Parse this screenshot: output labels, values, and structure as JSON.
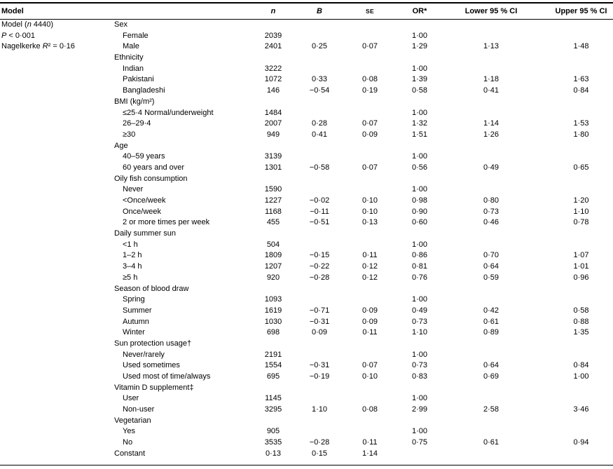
{
  "page": {
    "background": "#ffffff",
    "text_color": "#000000",
    "rule_color": "#000000"
  },
  "table": {
    "header": {
      "model": "Model",
      "n": "n",
      "b": "B",
      "se": "SE",
      "or": "OR*",
      "lower": "Lower 95 % CI",
      "upper": "Upper 95 % CI"
    },
    "model_info": [
      {
        "pre": "Model (",
        "it": "n",
        "post": " 4440)"
      },
      {
        "pre": "",
        "it": "P",
        "post": " < 0·001"
      },
      {
        "pre": "Nagelkerke ",
        "it": "R",
        "post": "² = 0·16"
      }
    ],
    "rows": [
      {
        "label": "Sex",
        "ind": 0,
        "n": "",
        "b": "",
        "se": "",
        "or": "",
        "lo": "",
        "up": ""
      },
      {
        "label": "Female",
        "ind": 1,
        "n": "2039",
        "b": "",
        "se": "",
        "or": "1·00",
        "lo": "",
        "up": ""
      },
      {
        "label": "Male",
        "ind": 1,
        "n": "2401",
        "b": "0·25",
        "se": "0·07",
        "or": "1·29",
        "lo": "1·13",
        "up": "1·48"
      },
      {
        "label": "Ethnicity",
        "ind": 0,
        "n": "",
        "b": "",
        "se": "",
        "or": "",
        "lo": "",
        "up": ""
      },
      {
        "label": "Indian",
        "ind": 1,
        "n": "3222",
        "b": "",
        "se": "",
        "or": "1·00",
        "lo": "",
        "up": ""
      },
      {
        "label": "Pakistani",
        "ind": 1,
        "n": "1072",
        "b": "0·33",
        "se": "0·08",
        "or": "1·39",
        "lo": "1·18",
        "up": "1·63"
      },
      {
        "label": "Bangladeshi",
        "ind": 1,
        "n": "146",
        "b": "−0·54",
        "se": "0·19",
        "or": "0·58",
        "lo": "0·41",
        "up": "0·84"
      },
      {
        "label": "BMI (kg/m²)",
        "ind": 0,
        "n": "",
        "b": "",
        "se": "",
        "or": "",
        "lo": "",
        "up": ""
      },
      {
        "label": "≤25·4 Normal/underweight",
        "ind": 1,
        "n": "1484",
        "b": "",
        "se": "",
        "or": "1·00",
        "lo": "",
        "up": ""
      },
      {
        "label": "26–29·4",
        "ind": 1,
        "n": "2007",
        "b": "0·28",
        "se": "0·07",
        "or": "1·32",
        "lo": "1·14",
        "up": "1·53"
      },
      {
        "label": "≥30",
        "ind": 1,
        "n": "949",
        "b": "0·41",
        "se": "0·09",
        "or": "1·51",
        "lo": "1·26",
        "up": "1·80"
      },
      {
        "label": "Age",
        "ind": 0,
        "n": "",
        "b": "",
        "se": "",
        "or": "",
        "lo": "",
        "up": ""
      },
      {
        "label": "40–59 years",
        "ind": 1,
        "n": "3139",
        "b": "",
        "se": "",
        "or": "1·00",
        "lo": "",
        "up": ""
      },
      {
        "label": "60 years and over",
        "ind": 1,
        "n": "1301",
        "b": "−0·58",
        "se": "0·07",
        "or": "0·56",
        "lo": "0·49",
        "up": "0·65"
      },
      {
        "label": "Oily fish consumption",
        "ind": 0,
        "n": "",
        "b": "",
        "se": "",
        "or": "",
        "lo": "",
        "up": ""
      },
      {
        "label": "Never",
        "ind": 1,
        "n": "1590",
        "b": "",
        "se": "",
        "or": "1·00",
        "lo": "",
        "up": ""
      },
      {
        "label": "<Once/week",
        "ind": 1,
        "n": "1227",
        "b": "−0·02",
        "se": "0·10",
        "or": "0·98",
        "lo": "0·80",
        "up": "1·20"
      },
      {
        "label": "Once/week",
        "ind": 1,
        "n": "1168",
        "b": "−0·11",
        "se": "0·10",
        "or": "0·90",
        "lo": "0·73",
        "up": "1·10"
      },
      {
        "label": "2 or more times per week",
        "ind": 1,
        "n": "455",
        "b": "−0·51",
        "se": "0·13",
        "or": "0·60",
        "lo": "0·46",
        "up": "0·78"
      },
      {
        "label": "Daily summer sun",
        "ind": 0,
        "n": "",
        "b": "",
        "se": "",
        "or": "",
        "lo": "",
        "up": ""
      },
      {
        "label": "<1 h",
        "ind": 1,
        "n": "504",
        "b": "",
        "se": "",
        "or": "1·00",
        "lo": "",
        "up": ""
      },
      {
        "label": "1–2 h",
        "ind": 1,
        "n": "1809",
        "b": "−0·15",
        "se": "0·11",
        "or": "0·86",
        "lo": "0·70",
        "up": "1·07"
      },
      {
        "label": "3–4 h",
        "ind": 1,
        "n": "1207",
        "b": "−0·22",
        "se": "0·12",
        "or": "0·81",
        "lo": "0·64",
        "up": "1·01"
      },
      {
        "label": "≥5 h",
        "ind": 1,
        "n": "920",
        "b": "−0·28",
        "se": "0·12",
        "or": "0·76",
        "lo": "0·59",
        "up": "0·96"
      },
      {
        "label": "Season of blood draw",
        "ind": 0,
        "n": "",
        "b": "",
        "se": "",
        "or": "",
        "lo": "",
        "up": ""
      },
      {
        "label": "Spring",
        "ind": 1,
        "n": "1093",
        "b": "",
        "se": "",
        "or": "1·00",
        "lo": "",
        "up": ""
      },
      {
        "label": "Summer",
        "ind": 1,
        "n": "1619",
        "b": "−0·71",
        "se": "0·09",
        "or": "0·49",
        "lo": "0·42",
        "up": "0·58"
      },
      {
        "label": "Autumn",
        "ind": 1,
        "n": "1030",
        "b": "−0·31",
        "se": "0·09",
        "or": "0·73",
        "lo": "0·61",
        "up": "0·88"
      },
      {
        "label": "Winter",
        "ind": 1,
        "n": "698",
        "b": "0·09",
        "se": "0·11",
        "or": "1·10",
        "lo": "0·89",
        "up": "1·35"
      },
      {
        "label": "Sun protection usage†",
        "ind": 0,
        "n": "",
        "b": "",
        "se": "",
        "or": "",
        "lo": "",
        "up": ""
      },
      {
        "label": "Never/rarely",
        "ind": 1,
        "n": "2191",
        "b": "",
        "se": "",
        "or": "1·00",
        "lo": "",
        "up": ""
      },
      {
        "label": "Used sometimes",
        "ind": 1,
        "n": "1554",
        "b": "−0·31",
        "se": "0·07",
        "or": "0·73",
        "lo": "0·64",
        "up": "0·84"
      },
      {
        "label": "Used most of time/always",
        "ind": 1,
        "n": "695",
        "b": "−0·19",
        "se": "0·10",
        "or": "0·83",
        "lo": "0·69",
        "up": "1·00"
      },
      {
        "label": "Vitamin D supplement‡",
        "ind": 0,
        "n": "",
        "b": "",
        "se": "",
        "or": "",
        "lo": "",
        "up": ""
      },
      {
        "label": "User",
        "ind": 1,
        "n": "1145",
        "b": "",
        "se": "",
        "or": "1·00",
        "lo": "",
        "up": ""
      },
      {
        "label": "Non-user",
        "ind": 1,
        "n": "3295",
        "b": "1·10",
        "se": "0·08",
        "or": "2·99",
        "lo": "2·58",
        "up": "3·46"
      },
      {
        "label": "Vegetarian",
        "ind": 0,
        "n": "",
        "b": "",
        "se": "",
        "or": "",
        "lo": "",
        "up": ""
      },
      {
        "label": "Yes",
        "ind": 1,
        "n": "905",
        "b": "",
        "se": "",
        "or": "1·00",
        "lo": "",
        "up": ""
      },
      {
        "label": "No",
        "ind": 1,
        "n": "3535",
        "b": "−0·28",
        "se": "0·11",
        "or": "0·75",
        "lo": "0·61",
        "up": "0·94"
      },
      {
        "label": "Constant",
        "ind": 0,
        "n": "0·13",
        "b": "0·15",
        "se": "1·14",
        "or": "",
        "lo": "",
        "up": ""
      }
    ]
  }
}
